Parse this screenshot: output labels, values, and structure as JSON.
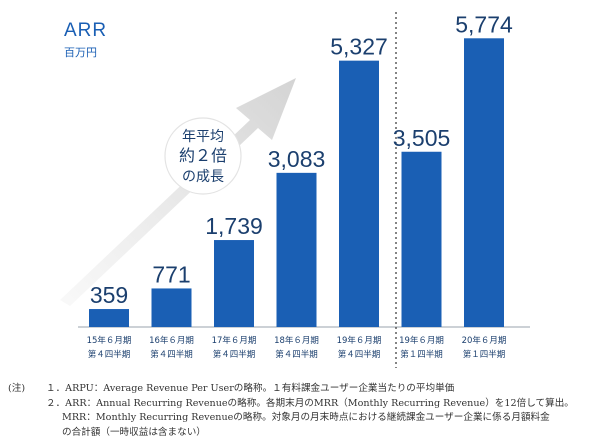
{
  "header": {
    "title": "ARR",
    "unit": "百万円"
  },
  "annotation": {
    "lines": [
      "年平均",
      "約２倍",
      "の成長"
    ]
  },
  "chart_data": {
    "type": "bar",
    "title": "ARR",
    "ylabel": "百万円",
    "categories": [
      [
        "15年６月期",
        "第４四半期"
      ],
      [
        "16年６月期",
        "第４四半期"
      ],
      [
        "17年６月期",
        "第４四半期"
      ],
      [
        "18年６月期",
        "第４四半期"
      ],
      [
        "19年６月期",
        "第４四半期"
      ],
      [
        "19年６月期",
        "第１四半期"
      ],
      [
        "20年６月期",
        "第１四半期"
      ]
    ],
    "values": [
      359,
      771,
      1739,
      3083,
      5327,
      3505,
      5774
    ],
    "value_labels": [
      "359",
      "771",
      "1,739",
      "3,083",
      "5,327",
      "3,505",
      "5,774"
    ],
    "ylim": [
      0,
      6200
    ],
    "grid": false,
    "bar_color": "#1a5fb4",
    "separator_after_index": 4
  },
  "notes": {
    "prefix": "(注)",
    "lines": [
      "１．ARPU：Average Revenue Per Userの略称。１有料課金ユーザー企業当たりの平均単価",
      "２．ARR：Annual Recurring Revenueの略称。各期末月のMRR（Monthly Recurring Revenue）を12倍して算出。",
      "MRR：Monthly Recurring Revenueの略称。対象月の月末時点における継続課金ユーザー企業に係る月額料金",
      "の合計額（一時収益は含まない）"
    ]
  }
}
